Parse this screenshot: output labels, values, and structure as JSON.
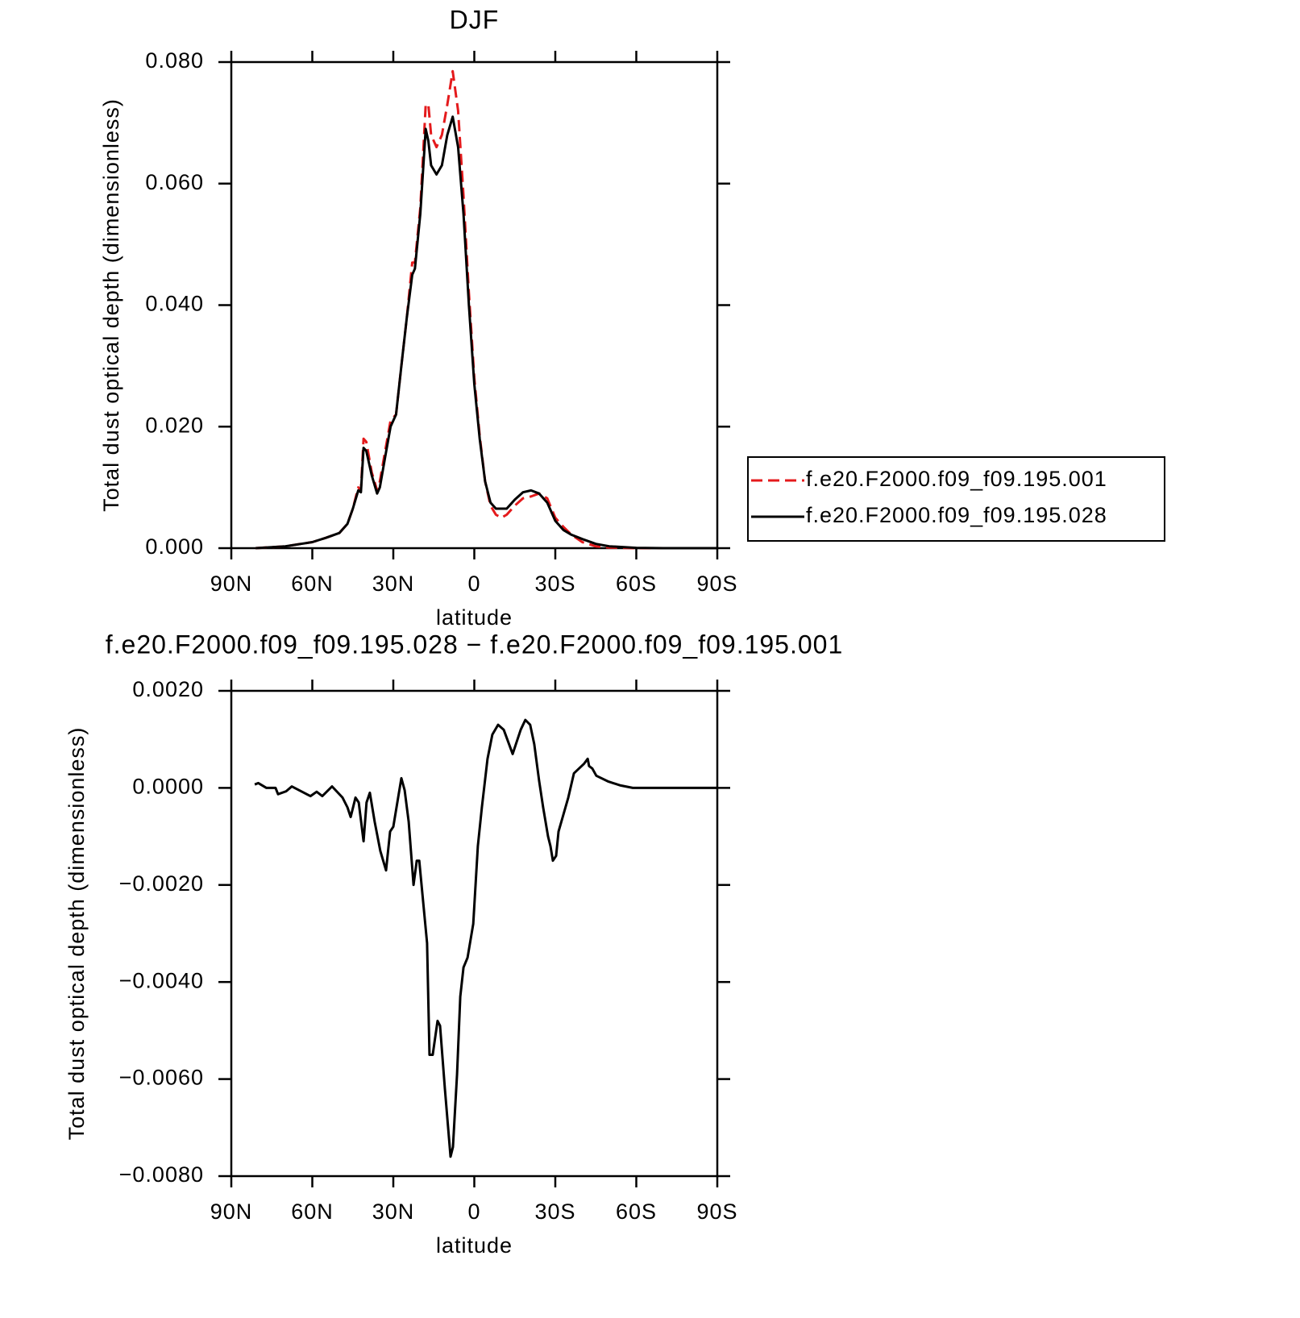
{
  "chart_data": [
    {
      "type": "line",
      "title": "DJF",
      "xlabel": "latitude",
      "ylabel": "Total dust optical depth (dimensionless)",
      "xlim": [
        90,
        -90
      ],
      "xticks": [
        {
          "value": 90,
          "label": "90N"
        },
        {
          "value": 60,
          "label": "60N"
        },
        {
          "value": 30,
          "label": "30N"
        },
        0,
        {
          "value": -30,
          "label": "30S"
        },
        {
          "value": -60,
          "label": "60S"
        },
        {
          "value": -90,
          "label": "90S"
        }
      ],
      "ylim": [
        0,
        0.08
      ],
      "yticks": [
        {
          "value": 0,
          "label": "0.000"
        },
        {
          "value": 0.02,
          "label": "0.020"
        },
        {
          "value": 0.04,
          "label": "0.040"
        },
        {
          "value": 0.06,
          "label": "0.060"
        },
        {
          "value": 0.08,
          "label": "0.080"
        }
      ],
      "legend": "right",
      "x": [
        81,
        70,
        60,
        55,
        50,
        47,
        45,
        43,
        42,
        41,
        40,
        38,
        36,
        35,
        33,
        31,
        29,
        27,
        25,
        23,
        22,
        20,
        18,
        17,
        16,
        14,
        12,
        10,
        8,
        6,
        4,
        2,
        0,
        -2,
        -4,
        -6,
        -8,
        -10,
        -12,
        -15,
        -18,
        -21,
        -24,
        -27,
        -30,
        -33,
        -36,
        -40,
        -45,
        -50,
        -60,
        -70,
        -90
      ],
      "series": [
        {
          "name": "f.e20.F2000.f09_f09.195.001",
          "color": "#e41a1c",
          "style": "dashed",
          "values": [
            0,
            0.0003,
            0.001,
            0.0017,
            0.0025,
            0.004,
            0.0065,
            0.01,
            0.0095,
            0.018,
            0.0175,
            0.0125,
            0.0095,
            0.011,
            0.016,
            0.021,
            0.022,
            0.03,
            0.038,
            0.047,
            0.047,
            0.056,
            0.073,
            0.073,
            0.068,
            0.066,
            0.068,
            0.073,
            0.0785,
            0.072,
            0.058,
            0.042,
            0.028,
            0.0185,
            0.011,
            0.007,
            0.0055,
            0.005,
            0.0055,
            0.007,
            0.0082,
            0.0085,
            0.009,
            0.0082,
            0.005,
            0.0035,
            0.0022,
            0.001,
            0.0003,
            0.0001,
            0,
            0,
            0
          ]
        },
        {
          "name": "f.e20.F2000.f09_f09.195.028",
          "color": "#000000",
          "style": "solid",
          "values": [
            0,
            0.0003,
            0.001,
            0.0017,
            0.0025,
            0.004,
            0.0065,
            0.0095,
            0.0092,
            0.0165,
            0.016,
            0.012,
            0.009,
            0.01,
            0.015,
            0.02,
            0.022,
            0.03,
            0.038,
            0.045,
            0.046,
            0.055,
            0.069,
            0.067,
            0.063,
            0.0615,
            0.063,
            0.068,
            0.071,
            0.066,
            0.055,
            0.04,
            0.027,
            0.018,
            0.011,
            0.0075,
            0.0065,
            0.0065,
            0.0065,
            0.008,
            0.0092,
            0.0095,
            0.009,
            0.0075,
            0.0045,
            0.003,
            0.0022,
            0.0015,
            0.0007,
            0.0003,
            5e-05,
            0,
            0
          ]
        }
      ]
    },
    {
      "type": "line",
      "title": "f.e20.F2000.f09_f09.195.028 − f.e20.F2000.f09_f09.195.001",
      "xlabel": "latitude",
      "ylabel": "Total dust optical depth (dimensionless)",
      "xlim": [
        90,
        -90
      ],
      "xticks": [
        {
          "value": 90,
          "label": "90N"
        },
        {
          "value": 60,
          "label": "60N"
        },
        {
          "value": 30,
          "label": "30N"
        },
        0,
        {
          "value": -30,
          "label": "30S"
        },
        {
          "value": -60,
          "label": "60S"
        },
        {
          "value": -90,
          "label": "90S"
        }
      ],
      "ylim": [
        -0.008,
        0.002
      ],
      "yticks": [
        {
          "value": -0.008,
          "label": "−0.0080"
        },
        {
          "value": -0.006,
          "label": "−0.0060"
        },
        {
          "value": -0.004,
          "label": "−0.0040"
        },
        {
          "value": -0.002,
          "label": "−0.0020"
        },
        {
          "value": 0,
          "label": "0.0000"
        },
        {
          "value": 0.002,
          "label": "0.0020"
        }
      ],
      "x": [
        81.3,
        80,
        77,
        73.6,
        72.7,
        69.7,
        67.6,
        60.7,
        58.4,
        56.3,
        52.7,
        48.8,
        47,
        45.8,
        44,
        42.8,
        41,
        39.9,
        38.7,
        36.9,
        34.8,
        32.7,
        31.2,
        30,
        28.2,
        27,
        25.8,
        24.3,
        22.5,
        21.3,
        20.4,
        17.5,
        16.6,
        15.4,
        13.6,
        12.7,
        10.9,
        8.8,
        7.9,
        6.4,
        5.2,
        4,
        2.5,
        0.4,
        -1.3,
        -2.8,
        -4.9,
        -6.7,
        -8.8,
        -10.9,
        -14.2,
        -16,
        -17.2,
        -18.9,
        -20.7,
        -22.2,
        -24,
        -25.5,
        -27.3,
        -28.2,
        -29.1,
        -30.3,
        -31.2,
        -34.8,
        -36.9,
        -40.7,
        -42,
        -42.5,
        -43.7,
        -45.2,
        -49.7,
        -54.2,
        -58.7,
        -90
      ],
      "series": [
        {
          "color": "#000000",
          "style": "solid",
          "values": [
            7e-05,
            0.0001,
            0,
            0,
            -0.00013,
            -7e-05,
            3e-05,
            -0.00017,
            -8e-05,
            -0.00017,
            3e-05,
            -0.0002,
            -0.0004,
            -0.0006,
            -0.0002,
            -0.0003,
            -0.0011,
            -0.0003,
            -0.0001,
            -0.0007,
            -0.0013,
            -0.0017,
            -0.0009,
            -0.0008,
            -0.0002,
            0.0002,
            -5e-05,
            -0.0007,
            -0.002,
            -0.0015,
            -0.0015,
            -0.0032,
            -0.0055,
            -0.0055,
            -0.0048,
            -0.0049,
            -0.0062,
            -0.0076,
            -0.0074,
            -0.0059,
            -0.0043,
            -0.0037,
            -0.0035,
            -0.0028,
            -0.0012,
            -0.0004,
            0.0006,
            0.0011,
            0.0013,
            0.0012,
            0.0007,
            0.001,
            0.0012,
            0.0014,
            0.0013,
            0.0009,
            0.00015,
            -0.0004,
            -0.001,
            -0.0012,
            -0.0015,
            -0.0014,
            -0.0009,
            -0.0002,
            0.0003,
            0.0005,
            0.0006,
            0.00045,
            0.0004,
            0.00025,
            0.00013,
            5e-05,
            0,
            0
          ]
        }
      ]
    }
  ]
}
